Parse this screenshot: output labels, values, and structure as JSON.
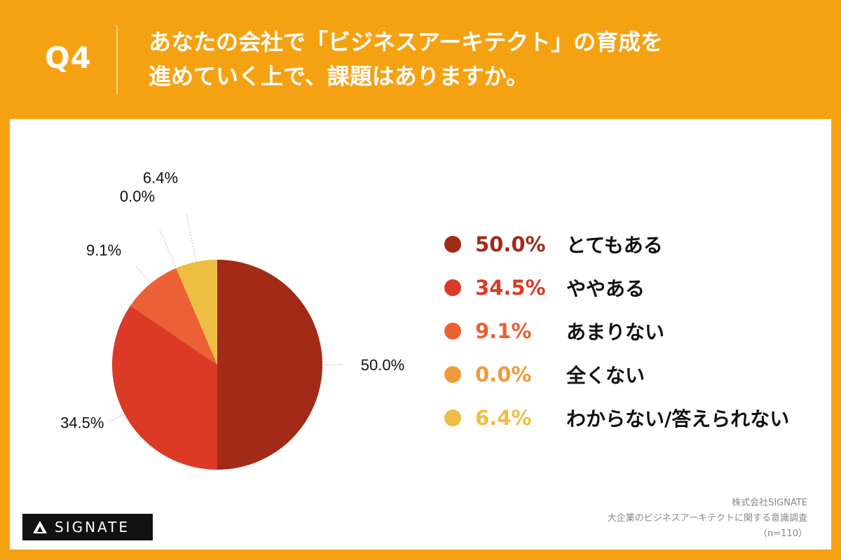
{
  "header": {
    "question_no": "Q4",
    "question_line1": "あなたの会社で「ビジネスアーキテクト」の育成を",
    "question_line2": "進めていく上で、課題はありますか。"
  },
  "chart_data": {
    "type": "pie",
    "categories": [
      "とてもある",
      "ややある",
      "あまりない",
      "全くない",
      "わからない/答えられない"
    ],
    "values": [
      50.0,
      34.5,
      9.1,
      0.0,
      6.4
    ],
    "value_labels": [
      "50.0%",
      "34.5%",
      "9.1%",
      "0.0%",
      "6.4%"
    ],
    "colors": [
      "#A22A17",
      "#DA3A26",
      "#EB6035",
      "#F09A3C",
      "#EDBE42"
    ],
    "legend_placement": "right",
    "start_angle_deg": 0,
    "direction": "clockwise"
  },
  "footer": {
    "logo_text": "SIGNATE",
    "source_company": "株式会社SIGNATE",
    "source_survey": "大企業のビジネスアーキテクトに関する意識調査",
    "sample_size": "（n=110）"
  }
}
